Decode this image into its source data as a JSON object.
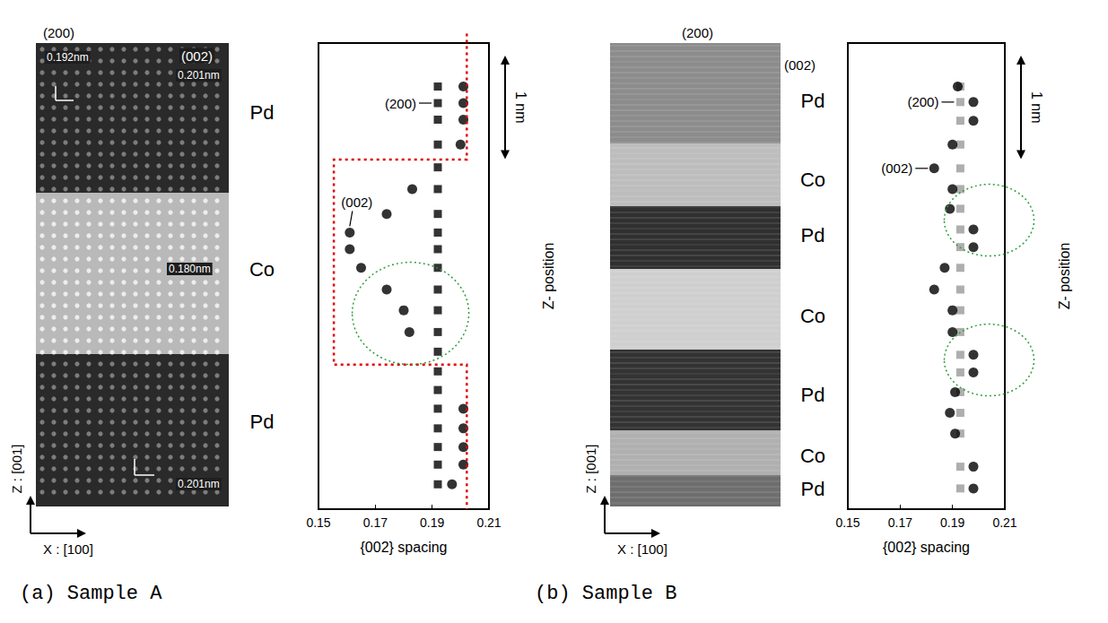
{
  "chart_data": [
    {
      "type": "scatter",
      "title": "(a) Sample A",
      "x_label": "{002} spacing",
      "y_label": "Z- position",
      "xlim": [
        0.15,
        0.21
      ],
      "xticks": [
        0.15,
        0.17,
        0.19,
        0.21
      ],
      "ylim": [
        0,
        4.5
      ],
      "tick_labels": "x",
      "grid": false,
      "scale_bar": {
        "value": 1,
        "label": "1 nm"
      },
      "series": [
        {
          "name": "(200)",
          "color": "#000000",
          "marker": "square",
          "values": [
            [
              0.192,
              4.08
            ],
            [
              0.192,
              3.92
            ],
            [
              0.192,
              3.76
            ],
            [
              0.192,
              3.52
            ],
            [
              0.192,
              3.3
            ],
            [
              0.192,
              3.09
            ],
            [
              0.192,
              2.85
            ],
            [
              0.192,
              2.67
            ],
            [
              0.192,
              2.51
            ],
            [
              0.192,
              2.33
            ],
            [
              0.192,
              2.12
            ],
            [
              0.192,
              1.92
            ],
            [
              0.192,
              1.71
            ],
            [
              0.192,
              1.52
            ],
            [
              0.192,
              1.33
            ],
            [
              0.192,
              1.15
            ],
            [
              0.192,
              0.97
            ],
            [
              0.192,
              0.78
            ],
            [
              0.192,
              0.6
            ],
            [
              0.192,
              0.43
            ],
            [
              0.192,
              0.24
            ]
          ]
        },
        {
          "name": "(002)",
          "color": "#000000",
          "marker": "circle",
          "values": [
            [
              0.201,
              4.08
            ],
            [
              0.201,
              3.92
            ],
            [
              0.201,
              3.76
            ],
            [
              0.2,
              3.52
            ],
            [
              0.183,
              3.09
            ],
            [
              0.174,
              2.85
            ],
            [
              0.161,
              2.67
            ],
            [
              0.161,
              2.51
            ],
            [
              0.165,
              2.33
            ],
            [
              0.174,
              2.12
            ],
            [
              0.18,
              1.92
            ],
            [
              0.182,
              1.71
            ],
            [
              0.201,
              0.97
            ],
            [
              0.201,
              0.78
            ],
            [
              0.201,
              0.6
            ],
            [
              0.201,
              0.43
            ],
            [
              0.197,
              0.24
            ]
          ]
        }
      ]
    },
    {
      "type": "scatter",
      "title": "(b) Sample B",
      "x_label": "{002} spacing",
      "y_label": "Z- position",
      "xlim": [
        0.15,
        0.21
      ],
      "xticks": [
        0.15,
        0.17,
        0.19,
        0.21
      ],
      "ylim": [
        0,
        4.5
      ],
      "tick_labels": "x",
      "grid": false,
      "scale_bar": {
        "value": 1,
        "label": "1 nm"
      },
      "series": [
        {
          "name": "(200)",
          "color": "#9a9a9a",
          "marker": "square",
          "values": [
            [
              0.193,
              4.08
            ],
            [
              0.193,
              3.93
            ],
            [
              0.193,
              3.75
            ],
            [
              0.193,
              3.52
            ],
            [
              0.193,
              3.29
            ],
            [
              0.193,
              3.09
            ],
            [
              0.193,
              2.9
            ],
            [
              0.193,
              2.7
            ],
            [
              0.193,
              2.53
            ],
            [
              0.193,
              2.33
            ],
            [
              0.193,
              2.12
            ],
            [
              0.193,
              1.92
            ],
            [
              0.193,
              1.71
            ],
            [
              0.193,
              1.49
            ],
            [
              0.193,
              1.32
            ],
            [
              0.193,
              1.13
            ],
            [
              0.193,
              0.93
            ],
            [
              0.193,
              0.73
            ],
            [
              0.193,
              0.41
            ],
            [
              0.193,
              0.2
            ]
          ]
        },
        {
          "name": "(002)",
          "color": "#000000",
          "marker": "circle",
          "values": [
            [
              0.192,
              4.08
            ],
            [
              0.198,
              3.93
            ],
            [
              0.198,
              3.75
            ],
            [
              0.19,
              3.52
            ],
            [
              0.183,
              3.29
            ],
            [
              0.19,
              3.09
            ],
            [
              0.189,
              2.9
            ],
            [
              0.198,
              2.7
            ],
            [
              0.198,
              2.53
            ],
            [
              0.187,
              2.33
            ],
            [
              0.183,
              2.12
            ],
            [
              0.19,
              1.92
            ],
            [
              0.19,
              1.71
            ],
            [
              0.198,
              1.49
            ],
            [
              0.198,
              1.32
            ],
            [
              0.191,
              1.13
            ],
            [
              0.189,
              0.93
            ],
            [
              0.191,
              0.73
            ],
            [
              0.198,
              0.41
            ],
            [
              0.198,
              0.2
            ]
          ]
        }
      ]
    }
  ],
  "micrographs": [
    {
      "layers": [
        "Pd",
        "Co",
        "Pd"
      ],
      "x_axis": "X : [100]",
      "z_axis": "Z : [001]",
      "annotations": [
        "(200)",
        "0.192nm",
        "(002)",
        "0.201nm",
        "0.180nm",
        "0.201nm"
      ]
    },
    {
      "layers": [
        "Pd",
        "Co",
        "Pd",
        "Co",
        "Pd",
        "Co",
        "Pd"
      ],
      "x_axis": "X : [100]",
      "z_axis": "Z : [001]",
      "annotations": [
        "(200)",
        "(002)"
      ]
    }
  ]
}
